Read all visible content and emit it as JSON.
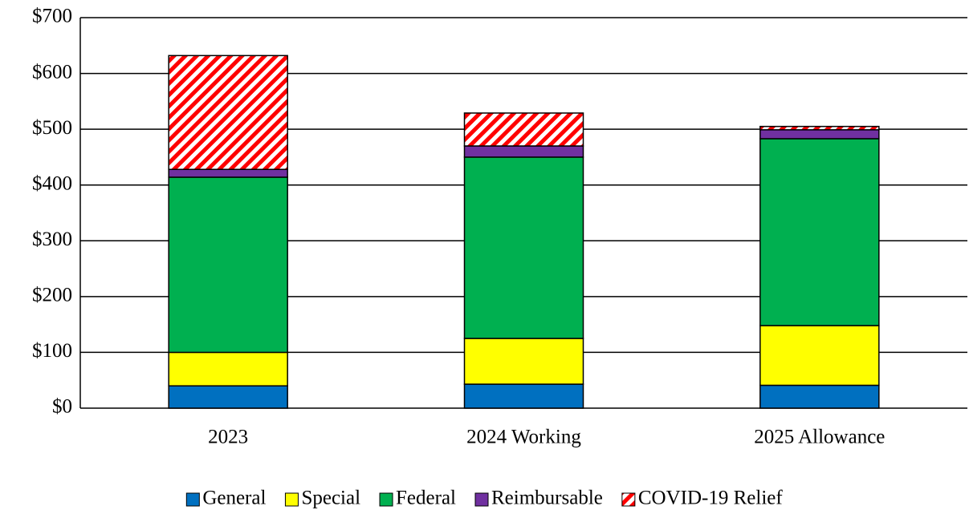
{
  "chart_data": {
    "type": "stacked_bar",
    "categories": [
      "2023",
      "2024 Working",
      "2025 Allowance"
    ],
    "series": [
      {
        "name": "General",
        "color": "#0070c0",
        "values": [
          40,
          43,
          41
        ]
      },
      {
        "name": "Special",
        "color": "#ffff00",
        "values": [
          60,
          82,
          107
        ]
      },
      {
        "name": "Federal",
        "color": "#00b050",
        "values": [
          314,
          325,
          335
        ]
      },
      {
        "name": "Reimbursable",
        "color": "#7030a0",
        "values": [
          14,
          20,
          16
        ]
      },
      {
        "name": "COVID-19 Relief",
        "color": "#ff0000",
        "hatch": true,
        "values": [
          204,
          59,
          6
        ]
      }
    ],
    "ylim": [
      0,
      700
    ],
    "yticks": [
      {
        "value": 0,
        "label": "$0"
      },
      {
        "value": 100,
        "label": "$100"
      },
      {
        "value": 200,
        "label": "$200"
      },
      {
        "value": 300,
        "label": "$300"
      },
      {
        "value": 400,
        "label": "$400"
      },
      {
        "value": 500,
        "label": "$500"
      },
      {
        "value": 600,
        "label": "$600"
      },
      {
        "value": 700,
        "label": "$700"
      }
    ],
    "grid": true,
    "legend": "bottom"
  }
}
